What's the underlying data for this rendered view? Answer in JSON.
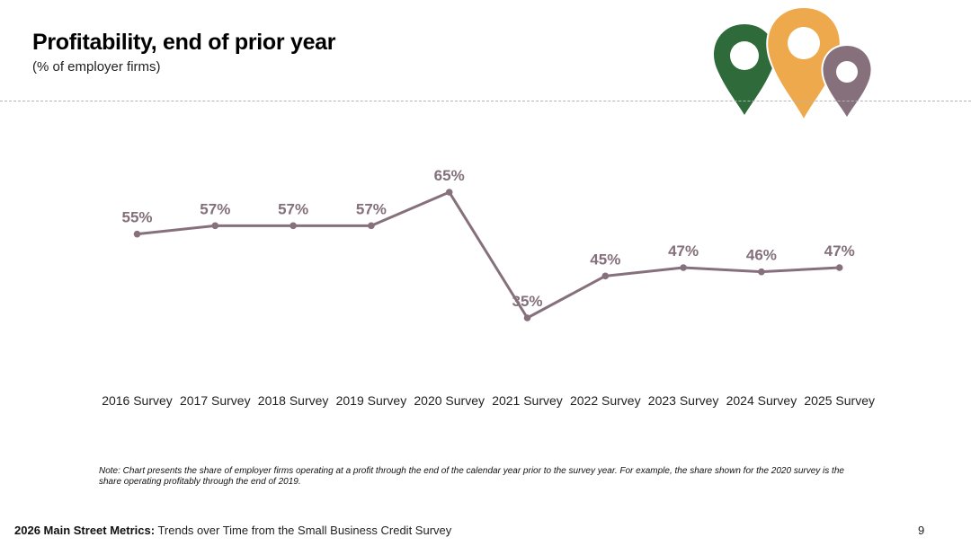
{
  "header": {
    "title": "Profitability, end of prior year",
    "subtitle": "(% of employer firms)"
  },
  "logo": {
    "icon": "map-pins-logo",
    "colors": [
      "#2f6b3a",
      "#eea94d",
      "#86707c"
    ]
  },
  "chart_data": {
    "type": "line",
    "categories": [
      "2016 Survey",
      "2017 Survey",
      "2018 Survey",
      "2019 Survey",
      "2020 Survey",
      "2021 Survey",
      "2022 Survey",
      "2023 Survey",
      "2024 Survey",
      "2025 Survey"
    ],
    "values": [
      55,
      57,
      57,
      57,
      65,
      35,
      45,
      47,
      46,
      47
    ],
    "data_labels": [
      "55%",
      "57%",
      "57%",
      "57%",
      "65%",
      "35%",
      "45%",
      "47%",
      "46%",
      "47%"
    ],
    "unit": "%",
    "color": "#86707c",
    "ylim": [
      25,
      75
    ],
    "grid": false,
    "legend": "none"
  },
  "note": "Note: Chart presents the share of employer firms operating at a profit through the end of the calendar year prior to the survey year. For example, the share shown for the 2020 survey is the share operating profitably through the end of 2019.",
  "footer": {
    "bold": "2026 Main Street Metrics:",
    "text": " Trends over Time from the Small Business Credit Survey",
    "page": "9"
  }
}
